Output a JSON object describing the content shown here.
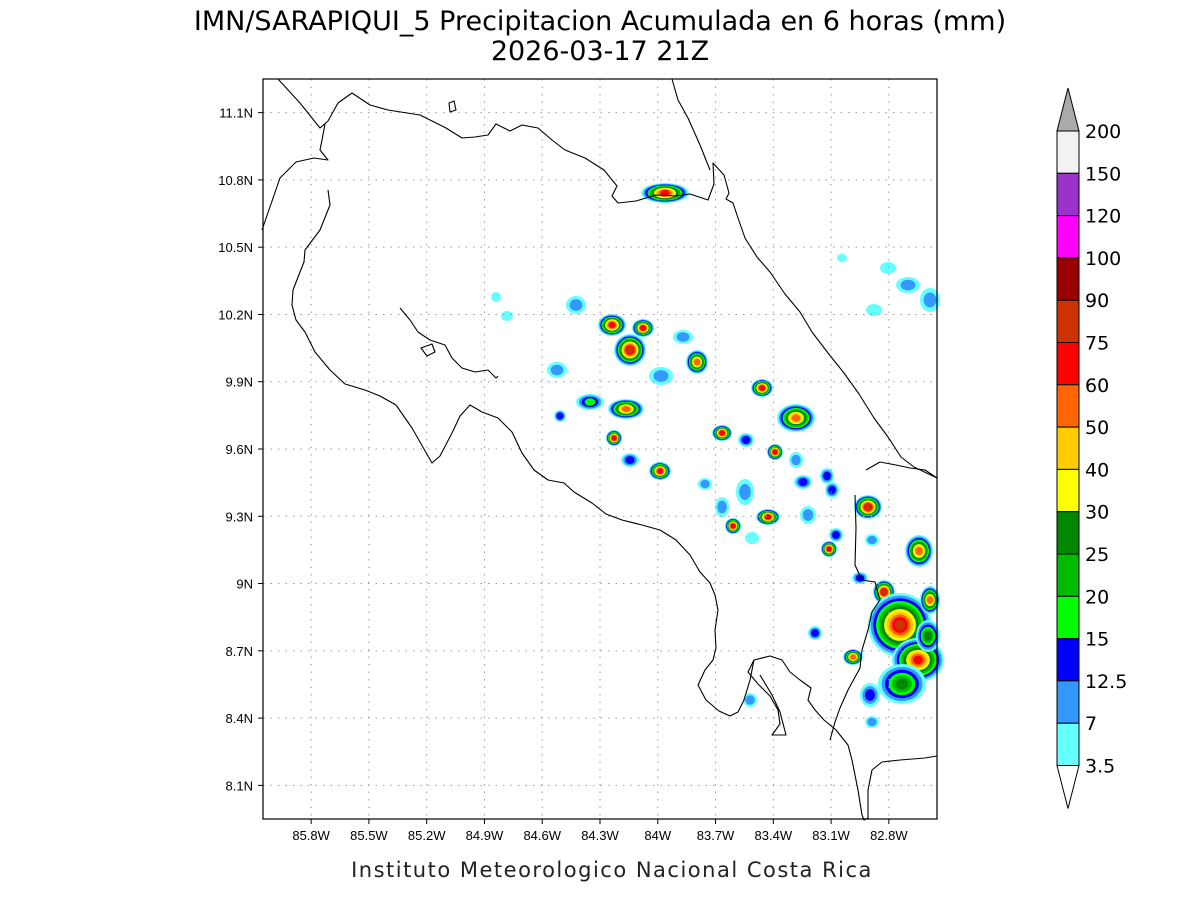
{
  "title": {
    "line1": "IMN/SARAPIQUI_5 Precipitacion Acumulada en 6 horas (mm)",
    "line2": "2026-03-17 21Z"
  },
  "footer": "Instituto Meteorologico Nacional Costa Rica",
  "map": {
    "lon_range": [
      -86.05,
      -82.55
    ],
    "lat_range": [
      7.95,
      11.25
    ],
    "lon_ticks": [
      "85.8W",
      "85.5W",
      "85.2W",
      "84.9W",
      "84.6W",
      "84.3W",
      "84W",
      "83.7W",
      "83.4W",
      "83.1W",
      "82.8W"
    ],
    "lat_ticks": [
      "11.1N",
      "10.8N",
      "10.5N",
      "10.2N",
      "9.9N",
      "9.6N",
      "9.3N",
      "9N",
      "8.7N",
      "8.4N",
      "8.1N"
    ],
    "grid": true
  },
  "colorbar": {
    "labels": [
      "200",
      "150",
      "120",
      "100",
      "90",
      "75",
      "60",
      "50",
      "40",
      "30",
      "25",
      "20",
      "15",
      "12.5",
      "7",
      "3.5"
    ],
    "colors": [
      "#f2f2f2",
      "#9933cc",
      "#ff00ff",
      "#990000",
      "#cc3300",
      "#ff0000",
      "#ff6600",
      "#ffcc00",
      "#ffff00",
      "#008800",
      "#00bb00",
      "#00ff00",
      "#0000ff",
      "#3399ff",
      "#66ffff"
    ],
    "over_color": "#aaaaaa",
    "under_color": "#ffffff"
  }
}
